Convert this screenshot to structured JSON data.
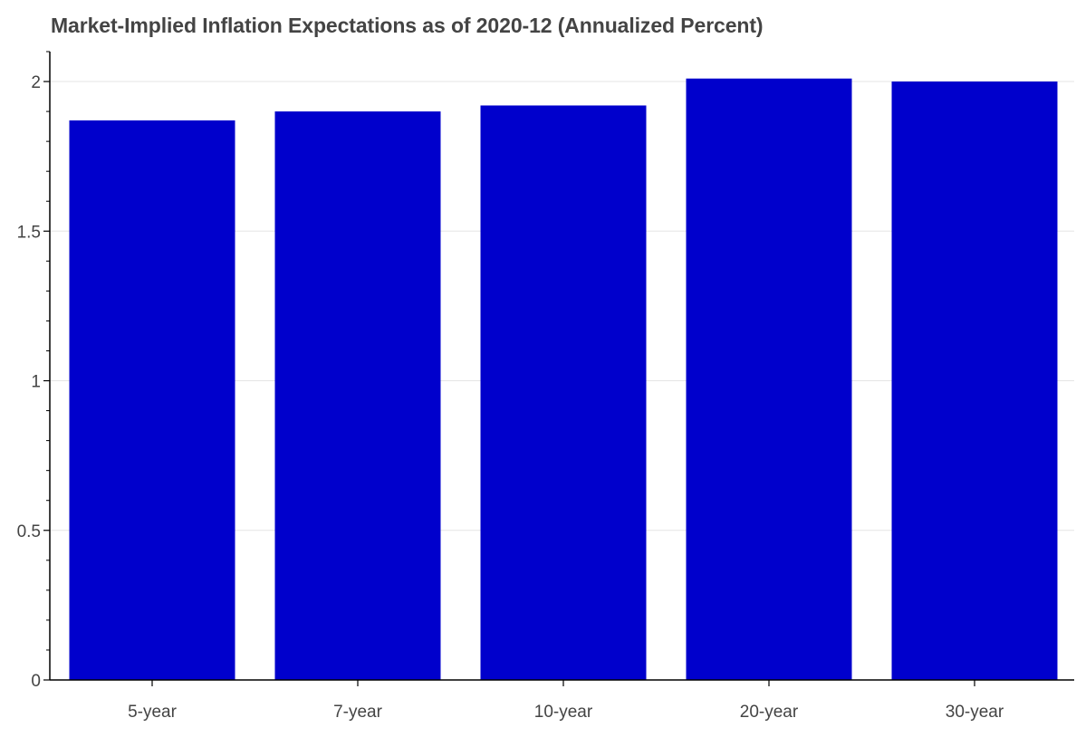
{
  "chart_data": {
    "type": "bar",
    "title": "Market-Implied Inflation Expectations as of 2020-12 (Annualized Percent)",
    "xlabel": "",
    "ylabel": "",
    "categories": [
      "5-year",
      "7-year",
      "10-year",
      "20-year",
      "30-year"
    ],
    "values": [
      1.87,
      1.9,
      1.92,
      2.01,
      2.0
    ],
    "ylim": [
      0,
      2.1
    ],
    "y_ticks": [
      0,
      0.5,
      1,
      1.5,
      2
    ],
    "y_tick_labels": [
      "0",
      "0.5",
      "1",
      "1.5",
      "2"
    ],
    "y_minor_step": 0.1,
    "grid": "horizontal",
    "legend": "none",
    "colors": {
      "bar": "#0000cc",
      "grid": "#e5e5e5",
      "axis": "#000000",
      "text": "#444444"
    }
  }
}
